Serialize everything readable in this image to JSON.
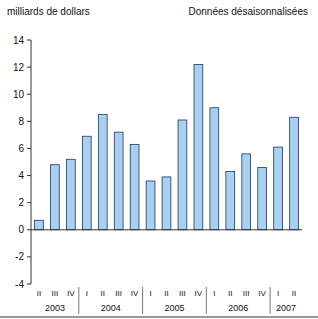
{
  "chart_data": {
    "type": "bar",
    "y_label": "milliards de dollars",
    "subtitle": "Données désaisonnalisées",
    "categories": [
      "II",
      "III",
      "IV",
      "I",
      "II",
      "III",
      "IV",
      "I",
      "II",
      "III",
      "IV",
      "I",
      "II",
      "III",
      "IV",
      "I",
      "II"
    ],
    "values": [
      0.7,
      4.8,
      5.2,
      6.9,
      8.5,
      7.2,
      6.3,
      3.6,
      3.9,
      8.1,
      12.2,
      9.0,
      4.3,
      5.6,
      4.6,
      6.1,
      8.3
    ],
    "year_groups": [
      {
        "label": "2003",
        "count": 3
      },
      {
        "label": "2004",
        "count": 4
      },
      {
        "label": "2005",
        "count": 4
      },
      {
        "label": "2006",
        "count": 4
      },
      {
        "label": "2007",
        "count": 2
      }
    ],
    "color": "#a9d0f2",
    "ylim": [
      -4,
      14
    ],
    "yticks": [
      -4,
      -2,
      0,
      2,
      4,
      6,
      8,
      10,
      12,
      14
    ],
    "grid": false
  }
}
